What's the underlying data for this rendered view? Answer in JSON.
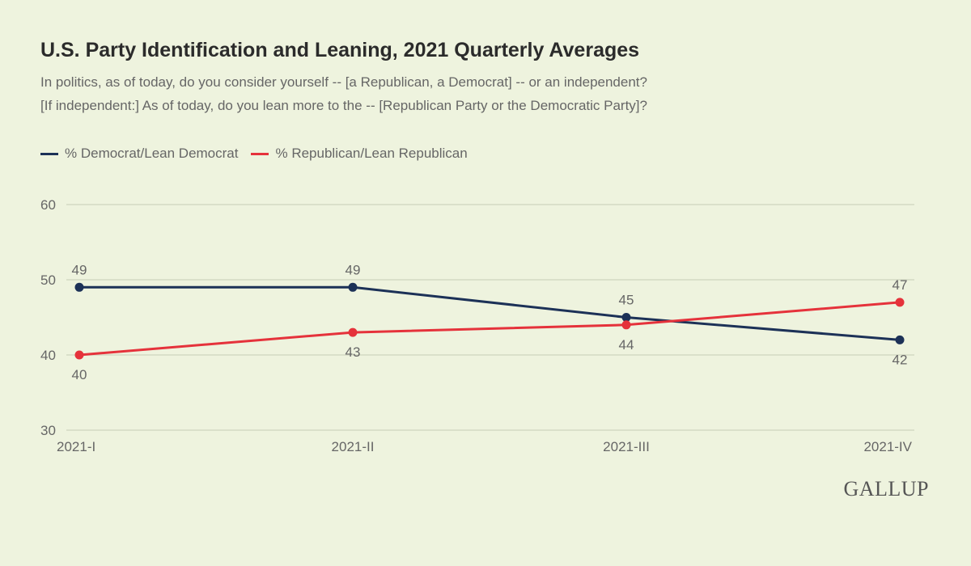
{
  "chart_data": {
    "type": "line",
    "title": "U.S. Party Identification and Leaning, 2021 Quarterly Averages",
    "subtitle": [
      "In politics, as of today, do you consider yourself -- [a Republican, a Democrat] -- or an independent?",
      "[If independent:] As of today, do you lean more to the -- [Republican Party or the Democratic Party]?"
    ],
    "categories": [
      "2021-I",
      "2021-II",
      "2021-III",
      "2021-IV"
    ],
    "series": [
      {
        "name": "% Democrat/Lean Democrat",
        "color": "#1c3157",
        "values": [
          49,
          49,
          45,
          42
        ]
      },
      {
        "name": "% Republican/Lean Republican",
        "color": "#e5323b",
        "values": [
          40,
          43,
          44,
          47
        ]
      }
    ],
    "ylim": [
      30,
      60
    ],
    "yticks": [
      30,
      40,
      50,
      60
    ],
    "grid": true,
    "legend": "top-left"
  },
  "brand": "GALLUP"
}
